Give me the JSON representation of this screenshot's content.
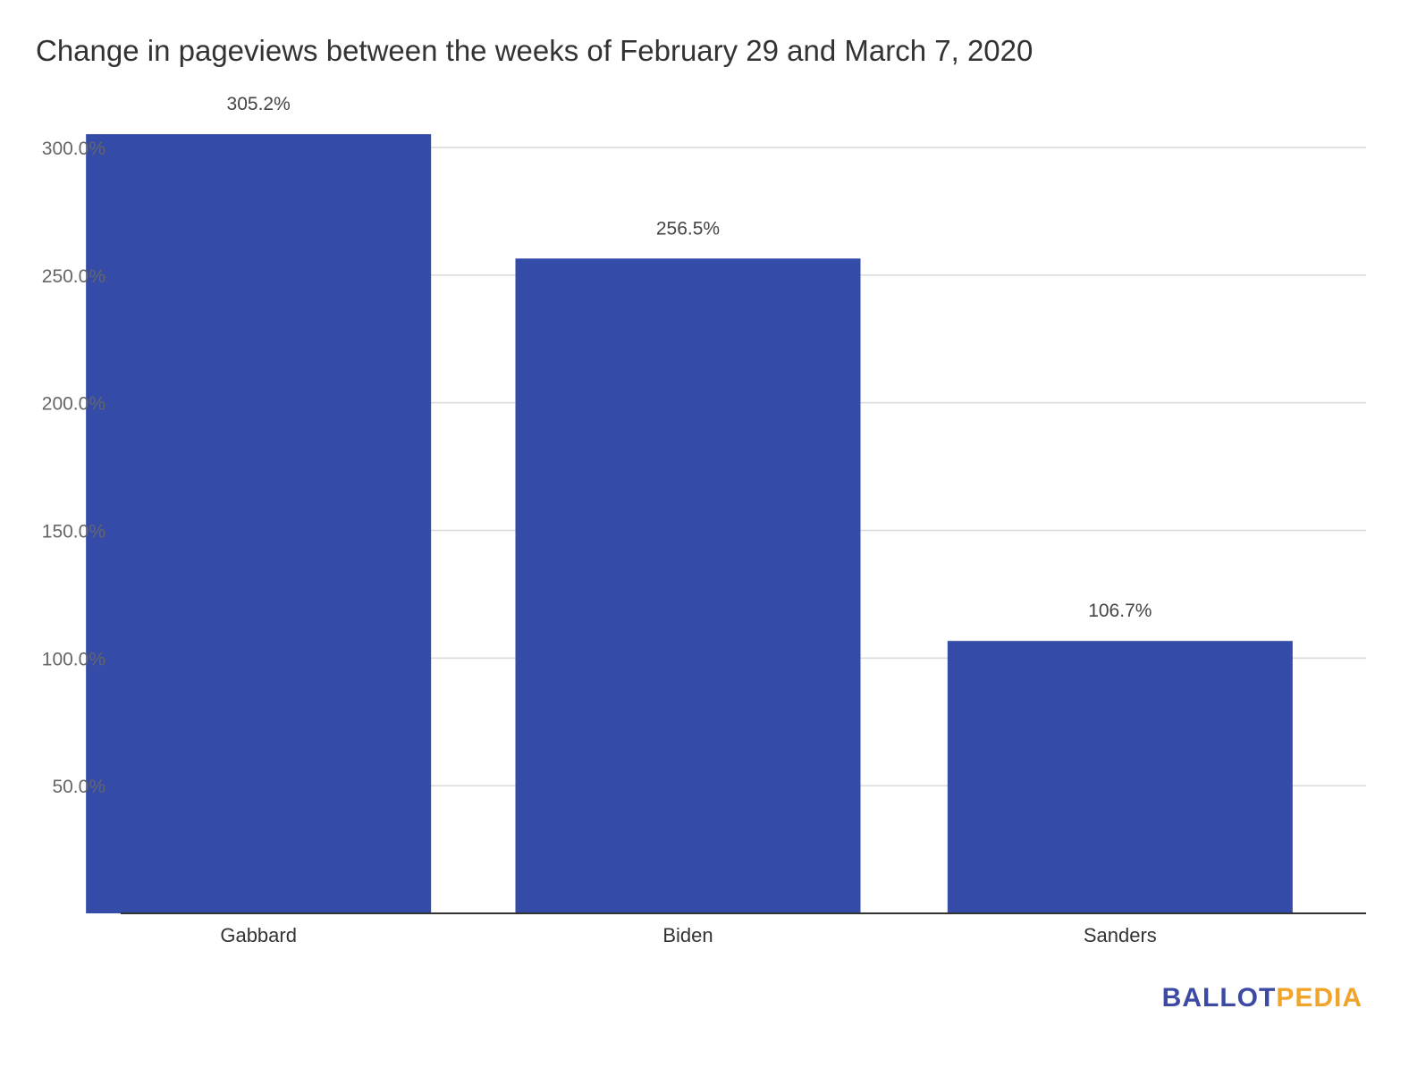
{
  "chart_data": {
    "type": "bar",
    "title": "Change in pageviews between the weeks of February 29 and March 7, 2020",
    "categories": [
      "Gabbard",
      "Biden",
      "Sanders"
    ],
    "values": [
      305.2,
      256.5,
      106.7
    ],
    "value_labels": [
      "305.2%",
      "256.5%",
      "106.7%"
    ],
    "y_ticks": [
      50,
      100,
      150,
      200,
      250,
      300
    ],
    "y_tick_labels": [
      "50.0%",
      "100.0%",
      "150.0%",
      "200.0%",
      "250.0%",
      "300.0%"
    ],
    "ylim": [
      0,
      300
    ],
    "xlabel": "",
    "ylabel": "",
    "grid": true,
    "legend": "none",
    "bar_color": "#344ba8",
    "grid_color": "#d9d9d9",
    "axis_color": "#333333"
  },
  "brand": {
    "part1": "BALLOT",
    "part2": "PEDIA",
    "color1": "#3d4aa3",
    "color2": "#f0a42a"
  }
}
